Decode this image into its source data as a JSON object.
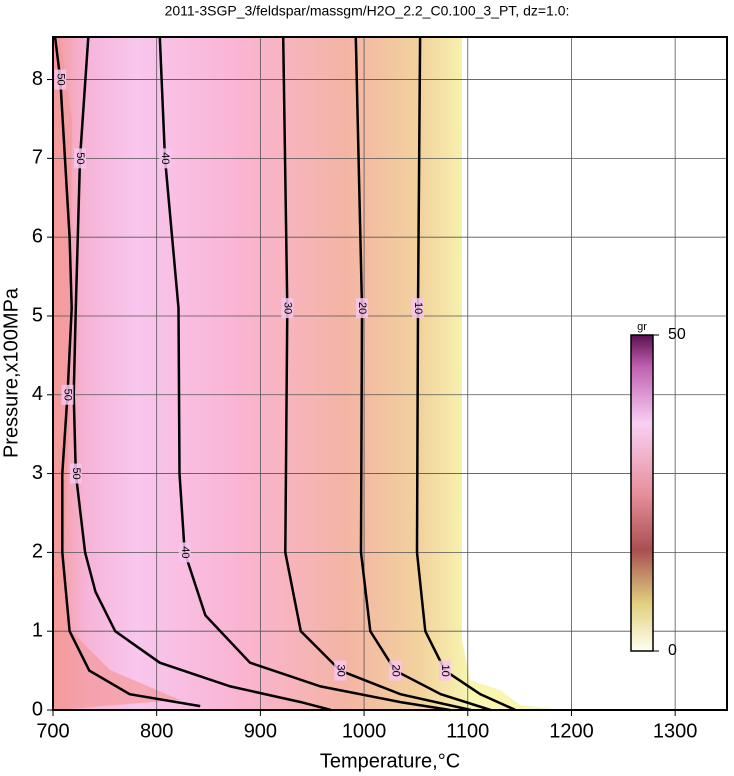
{
  "chart_data": {
    "type": "contour",
    "title": "2011-3SGP_3/feldspar/massgm/H2O_2.2_C0.100_3_PT, dz=1.0:",
    "x_label": "Temperature,°C",
    "y_label": "Pressure,x100MPa",
    "xlim": [
      700,
      1350
    ],
    "xticks": [
      700,
      800,
      900,
      1000,
      1100,
      1200,
      1300
    ],
    "ylim": [
      0,
      8.54
    ],
    "yticks": [
      0,
      1,
      2,
      3,
      4,
      5,
      6,
      7,
      8
    ],
    "grid": true,
    "series": [
      {
        "name": "10",
        "color": "#000000",
        "x": [
          1054,
          1052,
          1051,
          1059,
          1078,
          1112,
          1146
        ],
        "y": [
          8.54,
          5.1,
          2,
          1,
          0.5,
          0.2,
          0
        ]
      },
      {
        "name": "20",
        "color": "#000000",
        "x": [
          992,
          998,
          997,
          1006,
          1030,
          1074,
          1122
        ],
        "y": [
          8.54,
          5.1,
          2,
          1,
          0.5,
          0.2,
          0
        ]
      },
      {
        "name": "30",
        "color": "#000000",
        "x": [
          922,
          926,
          924,
          939,
          977,
          1035,
          1103
        ],
        "y": [
          8.54,
          5.1,
          2,
          1,
          0.5,
          0.2,
          0
        ]
      },
      {
        "name": "40",
        "color": "#000000",
        "x": [
          803,
          808,
          821,
          822,
          827,
          847,
          890,
          958,
          1035,
          1083
        ],
        "y": [
          8.54,
          7,
          5.1,
          3,
          2,
          1.2,
          0.6,
          0.3,
          0.1,
          0
        ]
      },
      {
        "name": "50",
        "color": "#000000",
        "x": [
          734,
          726,
          722,
          720,
          722,
          731,
          741,
          760,
          803,
          871,
          939,
          968
        ],
        "y": [
          8.54,
          7,
          5.1,
          4,
          3,
          2,
          1.5,
          1,
          0.6,
          0.3,
          0.1,
          0
        ]
      },
      {
        "name": "50",
        "color": "#000000",
        "x": [
          702,
          707,
          716,
          718,
          714,
          709,
          709,
          716,
          735,
          774,
          842
        ],
        "y": [
          8.54,
          8,
          6,
          5.1,
          4,
          3,
          2,
          1,
          0.5,
          0.2,
          0.05
        ]
      }
    ],
    "colorbar": {
      "label": "gr",
      "clim": [
        0,
        50
      ],
      "ticks": [
        0,
        50
      ]
    }
  }
}
